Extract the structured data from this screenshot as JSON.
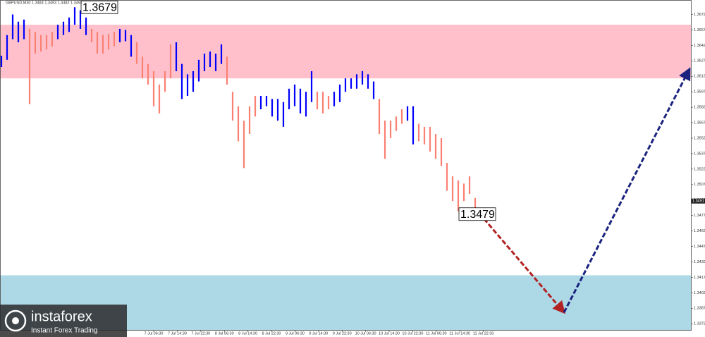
{
  "chart_data": {
    "type": "price-bars",
    "title": "GBPUSD,M30 1.3484 1.3493 1.3482 1.3491",
    "ylim": [
      1.3366,
      1.3686
    ],
    "yticks": [
      1.3372,
      1.3387,
      1.3402,
      1.3417,
      1.3432,
      1.3447,
      1.3462,
      1.3477,
      1.3492,
      1.3507,
      1.3522,
      1.3537,
      1.3552,
      1.3567,
      1.3582,
      1.3597,
      1.3612,
      1.3627,
      1.3642,
      1.3657,
      1.3672
    ],
    "current_price": 1.3491,
    "time_labels": [
      "7 Jul 06:30",
      "7 Jul 14:30",
      "7 Jul 22:30",
      "8 Jul 06:30",
      "8 Jul 14:30",
      "8 Jul 22:30",
      "9 Jul 06:30",
      "9 Jul 14:30",
      "9 Jul 22:30",
      "10 Jul 06:30",
      "10 Jul 14:30",
      "10 Jul 22:30",
      "11 Jul 06:30",
      "11 Jul 14:30",
      "11 Jul 22:30"
    ],
    "zones": [
      {
        "color": "#ffc0cb",
        "range": [
          1.361,
          1.3662
        ]
      },
      {
        "color": "#add8e6",
        "range": [
          1.3366,
          1.3419
        ]
      }
    ],
    "bars": {
      "high": [
        1.3632,
        1.3652,
        1.3672,
        1.3665,
        1.3667,
        1.3658,
        1.3655,
        1.3652,
        1.3652,
        1.3655,
        1.3662,
        1.3665,
        1.3669,
        1.3679,
        1.3676,
        1.3669,
        1.3658,
        1.3655,
        1.3652,
        1.3653,
        1.3655,
        1.3658,
        1.3657,
        1.3652,
        1.3645,
        1.3631,
        1.3624,
        1.3617,
        1.3604,
        1.3617,
        1.3643,
        1.3645,
        1.3624,
        1.3614,
        1.3617,
        1.3628,
        1.3634,
        1.3636,
        1.3634,
        1.3643,
        1.3631,
        1.3597,
        1.3583,
        1.3569,
        1.3583,
        1.3593,
        1.3593,
        1.3593,
        1.359,
        1.359,
        1.3587,
        1.36,
        1.3604,
        1.36,
        1.3597,
        1.3617,
        1.3597,
        1.3597,
        1.3593,
        1.3597,
        1.3604,
        1.361,
        1.361,
        1.3614,
        1.3617,
        1.3614,
        1.3607,
        1.359,
        1.3569,
        1.3569,
        1.3573,
        1.358,
        1.3583,
        1.3583,
        1.3566,
        1.3563,
        1.3563,
        1.3556,
        1.3552,
        1.3528,
        1.3515,
        1.3511,
        1.3508,
        1.3515,
        1.3494
      ],
      "low": [
        1.3621,
        1.3628,
        1.3648,
        1.3645,
        1.3648,
        1.3585,
        1.3634,
        1.3636,
        1.3638,
        1.3641,
        1.3648,
        1.3652,
        1.3655,
        1.3662,
        1.3658,
        1.3652,
        1.3645,
        1.3634,
        1.3634,
        1.3638,
        1.3641,
        1.3645,
        1.3646,
        1.3631,
        1.3624,
        1.361,
        1.3604,
        1.3583,
        1.3576,
        1.3597,
        1.361,
        1.3617,
        1.359,
        1.3593,
        1.3597,
        1.3607,
        1.3617,
        1.3621,
        1.3617,
        1.3624,
        1.3604,
        1.3569,
        1.3549,
        1.3523,
        1.3556,
        1.3573,
        1.358,
        1.3583,
        1.3573,
        1.3569,
        1.3563,
        1.358,
        1.3583,
        1.3576,
        1.3573,
        1.3587,
        1.358,
        1.3576,
        1.358,
        1.3583,
        1.3587,
        1.3597,
        1.36,
        1.36,
        1.3604,
        1.36,
        1.359,
        1.3556,
        1.3532,
        1.3552,
        1.3559,
        1.3566,
        1.3569,
        1.3546,
        1.3549,
        1.3546,
        1.3539,
        1.3532,
        1.3525,
        1.3501,
        1.3491,
        1.3481,
        1.3491,
        1.3498,
        1.3477
      ],
      "color": [
        "#0000ff",
        "#0000ff",
        "#0000ff",
        "#0000ff",
        "#0000ff",
        "#fa8072",
        "#fa8072",
        "#fa8072",
        "#fa8072",
        "#fa8072",
        "#0000ff",
        "#0000ff",
        "#0000ff",
        "#0000ff",
        "#0000ff",
        "#0000ff",
        "#fa8072",
        "#fa8072",
        "#fa8072",
        "#fa8072",
        "#fa8072",
        "#0000ff",
        "#0000ff",
        "#0000ff",
        "#fa8072",
        "#fa8072",
        "#fa8072",
        "#fa8072",
        "#fa8072",
        "#fa8072",
        "#fa8072",
        "#0000ff",
        "#0000ff",
        "#0000ff",
        "#0000ff",
        "#0000ff",
        "#0000ff",
        "#0000ff",
        "#0000ff",
        "#0000ff",
        "#fa8072",
        "#fa8072",
        "#fa8072",
        "#fa8072",
        "#fa8072",
        "#fa8072",
        "#0000ff",
        "#0000ff",
        "#0000ff",
        "#0000ff",
        "#0000ff",
        "#0000ff",
        "#0000ff",
        "#0000ff",
        "#0000ff",
        "#0000ff",
        "#fa8072",
        "#fa8072",
        "#fa8072",
        "#0000ff",
        "#0000ff",
        "#0000ff",
        "#0000ff",
        "#0000ff",
        "#0000ff",
        "#0000ff",
        "#0000ff",
        "#fa8072",
        "#fa8072",
        "#fa8072",
        "#fa8072",
        "#fa8072",
        "#0000ff",
        "#0000ff",
        "#fa8072",
        "#fa8072",
        "#fa8072",
        "#fa8072",
        "#fa8072",
        "#fa8072",
        "#fa8072",
        "#fa8072",
        "#fa8072",
        "#fa8072",
        "#fa8072"
      ]
    },
    "annotations": [
      1.3679,
      1.3479
    ],
    "forecast": [
      {
        "color": "#b22222",
        "values": [
          1.3479,
          1.3383
        ]
      },
      {
        "color": "#1a237e",
        "values": [
          1.3383,
          1.3619
        ]
      }
    ],
    "logo": {
      "name": "instaforex",
      "tagline": "Instant Forex Trading"
    }
  }
}
